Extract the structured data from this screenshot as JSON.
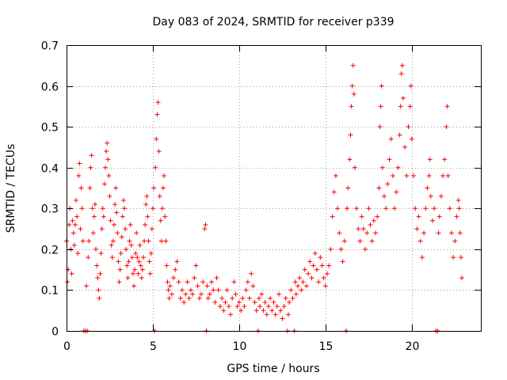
{
  "chart_data": {
    "type": "scatter",
    "title": "Day 083 of 2024, SRMTID for receiver p339",
    "xlabel": "GPS time / hours",
    "ylabel": "SRMTID / TECUs",
    "xlim": [
      0,
      24
    ],
    "ylim": [
      0,
      0.7
    ],
    "xticks": [
      0,
      5,
      10,
      15,
      20
    ],
    "xtick_labels": [
      "0",
      "5",
      "10",
      "15",
      "20"
    ],
    "yticks": [
      0,
      0.1,
      0.2,
      0.3,
      0.4,
      0.5,
      0.6,
      0.7
    ],
    "ytick_labels": [
      "0",
      "0.1",
      "0.2",
      "0.3",
      "0.4",
      "0.5",
      "0.6",
      "0.7"
    ],
    "grid": true,
    "marker": "+",
    "color": "#ff0000",
    "series": [
      {
        "name": "SRMTID",
        "points": [
          [
            0.0,
            0.22
          ],
          [
            0.05,
            0.12
          ],
          [
            0.1,
            0.15
          ],
          [
            0.15,
            0.26
          ],
          [
            0.2,
            0.3
          ],
          [
            0.25,
            0.2
          ],
          [
            0.3,
            0.14
          ],
          [
            0.35,
            0.27
          ],
          [
            0.4,
            0.24
          ],
          [
            0.45,
            0.21
          ],
          [
            0.5,
            0.26
          ],
          [
            0.55,
            0.32
          ],
          [
            0.6,
            0.28
          ],
          [
            0.65,
            0.19
          ],
          [
            0.7,
            0.38
          ],
          [
            0.75,
            0.41
          ],
          [
            0.8,
            0.25
          ],
          [
            0.85,
            0.35
          ],
          [
            0.9,
            0.3
          ],
          [
            0.95,
            0.22
          ],
          [
            1.0,
            0.0
          ],
          [
            1.1,
            0.0
          ],
          [
            1.2,
            0.0
          ],
          [
            1.15,
            0.11
          ],
          [
            1.25,
            0.18
          ],
          [
            1.3,
            0.22
          ],
          [
            1.35,
            0.35
          ],
          [
            1.4,
            0.4
          ],
          [
            1.45,
            0.43
          ],
          [
            1.5,
            0.3
          ],
          [
            1.55,
            0.24
          ],
          [
            1.6,
            0.28
          ],
          [
            1.65,
            0.31
          ],
          [
            1.7,
            0.2
          ],
          [
            1.75,
            0.16
          ],
          [
            1.8,
            0.13
          ],
          [
            1.85,
            0.1
          ],
          [
            1.9,
            0.08
          ],
          [
            1.95,
            0.14
          ],
          [
            2.0,
            0.19
          ],
          [
            2.05,
            0.25
          ],
          [
            2.1,
            0.3
          ],
          [
            2.15,
            0.28
          ],
          [
            2.2,
            0.36
          ],
          [
            2.25,
            0.4
          ],
          [
            2.3,
            0.44
          ],
          [
            2.35,
            0.46
          ],
          [
            2.4,
            0.42
          ],
          [
            2.45,
            0.38
          ],
          [
            2.5,
            0.33
          ],
          [
            2.55,
            0.27
          ],
          [
            2.6,
            0.21
          ],
          [
            2.65,
            0.18
          ],
          [
            2.7,
            0.22
          ],
          [
            2.75,
            0.26
          ],
          [
            2.8,
            0.31
          ],
          [
            2.85,
            0.35
          ],
          [
            2.9,
            0.29
          ],
          [
            2.95,
            0.24
          ],
          [
            3.0,
            0.17
          ],
          [
            3.05,
            0.12
          ],
          [
            3.1,
            0.15
          ],
          [
            3.15,
            0.19
          ],
          [
            3.2,
            0.23
          ],
          [
            3.25,
            0.28
          ],
          [
            3.3,
            0.32
          ],
          [
            3.35,
            0.3
          ],
          [
            3.4,
            0.25
          ],
          [
            3.45,
            0.2
          ],
          [
            3.5,
            0.16
          ],
          [
            3.55,
            0.13
          ],
          [
            3.6,
            0.17
          ],
          [
            3.65,
            0.22
          ],
          [
            3.7,
            0.26
          ],
          [
            3.75,
            0.21
          ],
          [
            3.8,
            0.18
          ],
          [
            3.85,
            0.14
          ],
          [
            3.9,
            0.11
          ],
          [
            3.95,
            0.15
          ],
          [
            4.0,
            0.19
          ],
          [
            4.05,
            0.24
          ],
          [
            4.1,
            0.18
          ],
          [
            4.15,
            0.14
          ],
          [
            4.2,
            0.17
          ],
          [
            4.25,
            0.21
          ],
          [
            4.3,
            0.16
          ],
          [
            4.35,
            0.13
          ],
          [
            4.4,
            0.15
          ],
          [
            4.45,
            0.18
          ],
          [
            4.5,
            0.22
          ],
          [
            4.55,
            0.26
          ],
          [
            4.6,
            0.31
          ],
          [
            4.65,
            0.33
          ],
          [
            4.7,
            0.28
          ],
          [
            4.75,
            0.22
          ],
          [
            4.8,
            0.17
          ],
          [
            4.85,
            0.14
          ],
          [
            4.9,
            0.19
          ],
          [
            4.95,
            0.25
          ],
          [
            5.0,
            0.3
          ],
          [
            5.05,
            0.35
          ],
          [
            5.1,
            0.0
          ],
          [
            5.15,
            0.4
          ],
          [
            5.2,
            0.47
          ],
          [
            5.25,
            0.53
          ],
          [
            5.3,
            0.56
          ],
          [
            5.35,
            0.44
          ],
          [
            5.4,
            0.33
          ],
          [
            5.45,
            0.27
          ],
          [
            5.5,
            0.22
          ],
          [
            5.55,
            0.3
          ],
          [
            5.6,
            0.35
          ],
          [
            5.65,
            0.38
          ],
          [
            5.7,
            0.28
          ],
          [
            5.75,
            0.22
          ],
          [
            5.8,
            0.16
          ],
          [
            5.85,
            0.12
          ],
          [
            5.9,
            0.1
          ],
          [
            5.95,
            0.08
          ],
          [
            6.0,
            0.11
          ],
          [
            6.1,
            0.09
          ],
          [
            6.2,
            0.13
          ],
          [
            6.3,
            0.15
          ],
          [
            6.4,
            0.17
          ],
          [
            6.5,
            0.12
          ],
          [
            6.6,
            0.08
          ],
          [
            6.7,
            0.1
          ],
          [
            6.8,
            0.07
          ],
          [
            6.9,
            0.09
          ],
          [
            7.0,
            0.12
          ],
          [
            7.1,
            0.08
          ],
          [
            7.2,
            0.1
          ],
          [
            7.3,
            0.09
          ],
          [
            7.4,
            0.13
          ],
          [
            7.5,
            0.16
          ],
          [
            7.6,
            0.11
          ],
          [
            7.7,
            0.08
          ],
          [
            7.8,
            0.09
          ],
          [
            7.9,
            0.12
          ],
          [
            8.0,
            0.25
          ],
          [
            8.05,
            0.26
          ],
          [
            8.1,
            0.0
          ],
          [
            8.15,
            0.11
          ],
          [
            8.2,
            0.08
          ],
          [
            8.3,
            0.09
          ],
          [
            8.4,
            0.12
          ],
          [
            8.5,
            0.1
          ],
          [
            8.6,
            0.07
          ],
          [
            8.7,
            0.13
          ],
          [
            8.8,
            0.1
          ],
          [
            8.9,
            0.06
          ],
          [
            9.0,
            0.08
          ],
          [
            9.1,
            0.05
          ],
          [
            9.2,
            0.07
          ],
          [
            9.3,
            0.1
          ],
          [
            9.4,
            0.06
          ],
          [
            9.5,
            0.04
          ],
          [
            9.6,
            0.08
          ],
          [
            9.7,
            0.12
          ],
          [
            9.8,
            0.09
          ],
          [
            9.9,
            0.06
          ],
          [
            10.0,
            0.07
          ],
          [
            10.1,
            0.05
          ],
          [
            10.2,
            0.08
          ],
          [
            10.3,
            0.06
          ],
          [
            10.4,
            0.1
          ],
          [
            10.5,
            0.12
          ],
          [
            10.6,
            0.08
          ],
          [
            10.7,
            0.14
          ],
          [
            10.8,
            0.11
          ],
          [
            10.9,
            0.07
          ],
          [
            11.0,
            0.05
          ],
          [
            11.1,
            0.0
          ],
          [
            11.15,
            0.08
          ],
          [
            11.2,
            0.06
          ],
          [
            11.3,
            0.09
          ],
          [
            11.4,
            0.05
          ],
          [
            11.5,
            0.07
          ],
          [
            11.6,
            0.04
          ],
          [
            11.7,
            0.06
          ],
          [
            11.8,
            0.08
          ],
          [
            11.9,
            0.05
          ],
          [
            12.0,
            0.07
          ],
          [
            12.1,
            0.04
          ],
          [
            12.2,
            0.06
          ],
          [
            12.3,
            0.09
          ],
          [
            12.4,
            0.05
          ],
          [
            12.5,
            0.03
          ],
          [
            12.6,
            0.06
          ],
          [
            12.7,
            0.08
          ],
          [
            12.8,
            0.0
          ],
          [
            12.85,
            0.04
          ],
          [
            12.9,
            0.07
          ],
          [
            13.0,
            0.1
          ],
          [
            13.1,
            0.08
          ],
          [
            13.2,
            0.0
          ],
          [
            13.25,
            0.12
          ],
          [
            13.3,
            0.09
          ],
          [
            13.4,
            0.11
          ],
          [
            13.5,
            0.13
          ],
          [
            13.6,
            0.1
          ],
          [
            13.7,
            0.12
          ],
          [
            13.8,
            0.15
          ],
          [
            13.9,
            0.11
          ],
          [
            14.0,
            0.14
          ],
          [
            14.1,
            0.17
          ],
          [
            14.2,
            0.13
          ],
          [
            14.3,
            0.16
          ],
          [
            14.4,
            0.19
          ],
          [
            14.5,
            0.15
          ],
          [
            14.6,
            0.12
          ],
          [
            14.7,
            0.18
          ],
          [
            14.8,
            0.16
          ],
          [
            14.9,
            0.13
          ],
          [
            15.0,
            0.11
          ],
          [
            15.1,
            0.14
          ],
          [
            15.2,
            0.16
          ],
          [
            15.3,
            0.2
          ],
          [
            15.4,
            0.28
          ],
          [
            15.5,
            0.34
          ],
          [
            15.6,
            0.38
          ],
          [
            15.7,
            0.3
          ],
          [
            15.8,
            0.24
          ],
          [
            15.9,
            0.2
          ],
          [
            16.0,
            0.17
          ],
          [
            16.1,
            0.22
          ],
          [
            16.2,
            0.0
          ],
          [
            16.25,
            0.3
          ],
          [
            16.3,
            0.35
          ],
          [
            16.4,
            0.42
          ],
          [
            16.45,
            0.48
          ],
          [
            16.5,
            0.55
          ],
          [
            16.55,
            0.6
          ],
          [
            16.6,
            0.65
          ],
          [
            16.65,
            0.58
          ],
          [
            16.7,
            0.4
          ],
          [
            16.8,
            0.3
          ],
          [
            16.9,
            0.25
          ],
          [
            17.0,
            0.22
          ],
          [
            17.1,
            0.28
          ],
          [
            17.2,
            0.25
          ],
          [
            17.3,
            0.2
          ],
          [
            17.4,
            0.24
          ],
          [
            17.5,
            0.3
          ],
          [
            17.6,
            0.26
          ],
          [
            17.7,
            0.22
          ],
          [
            17.8,
            0.27
          ],
          [
            17.9,
            0.24
          ],
          [
            18.0,
            0.28
          ],
          [
            18.1,
            0.35
          ],
          [
            18.15,
            0.5
          ],
          [
            18.2,
            0.55
          ],
          [
            18.25,
            0.6
          ],
          [
            18.3,
            0.4
          ],
          [
            18.4,
            0.33
          ],
          [
            18.5,
            0.3
          ],
          [
            18.6,
            0.36
          ],
          [
            18.7,
            0.42
          ],
          [
            18.8,
            0.47
          ],
          [
            18.9,
            0.38
          ],
          [
            19.0,
            0.3
          ],
          [
            19.1,
            0.34
          ],
          [
            19.2,
            0.4
          ],
          [
            19.3,
            0.48
          ],
          [
            19.35,
            0.55
          ],
          [
            19.4,
            0.63
          ],
          [
            19.45,
            0.65
          ],
          [
            19.5,
            0.57
          ],
          [
            19.6,
            0.45
          ],
          [
            19.7,
            0.38
          ],
          [
            19.8,
            0.5
          ],
          [
            19.9,
            0.55
          ],
          [
            19.95,
            0.6
          ],
          [
            20.0,
            0.47
          ],
          [
            20.1,
            0.38
          ],
          [
            20.2,
            0.3
          ],
          [
            20.3,
            0.25
          ],
          [
            20.4,
            0.28
          ],
          [
            20.5,
            0.22
          ],
          [
            20.6,
            0.18
          ],
          [
            20.7,
            0.24
          ],
          [
            20.8,
            0.3
          ],
          [
            20.9,
            0.35
          ],
          [
            21.0,
            0.38
          ],
          [
            21.05,
            0.42
          ],
          [
            21.1,
            0.33
          ],
          [
            21.2,
            0.27
          ],
          [
            21.3,
            0.3
          ],
          [
            21.4,
            0.0
          ],
          [
            21.5,
            0.0
          ],
          [
            21.55,
            0.24
          ],
          [
            21.6,
            0.28
          ],
          [
            21.7,
            0.33
          ],
          [
            21.8,
            0.38
          ],
          [
            21.9,
            0.42
          ],
          [
            22.0,
            0.5
          ],
          [
            22.05,
            0.55
          ],
          [
            22.1,
            0.38
          ],
          [
            22.2,
            0.3
          ],
          [
            22.3,
            0.24
          ],
          [
            22.4,
            0.18
          ],
          [
            22.5,
            0.22
          ],
          [
            22.6,
            0.28
          ],
          [
            22.7,
            0.32
          ],
          [
            22.75,
            0.3
          ],
          [
            22.8,
            0.24
          ],
          [
            22.85,
            0.18
          ],
          [
            22.9,
            0.13
          ]
        ]
      }
    ]
  }
}
